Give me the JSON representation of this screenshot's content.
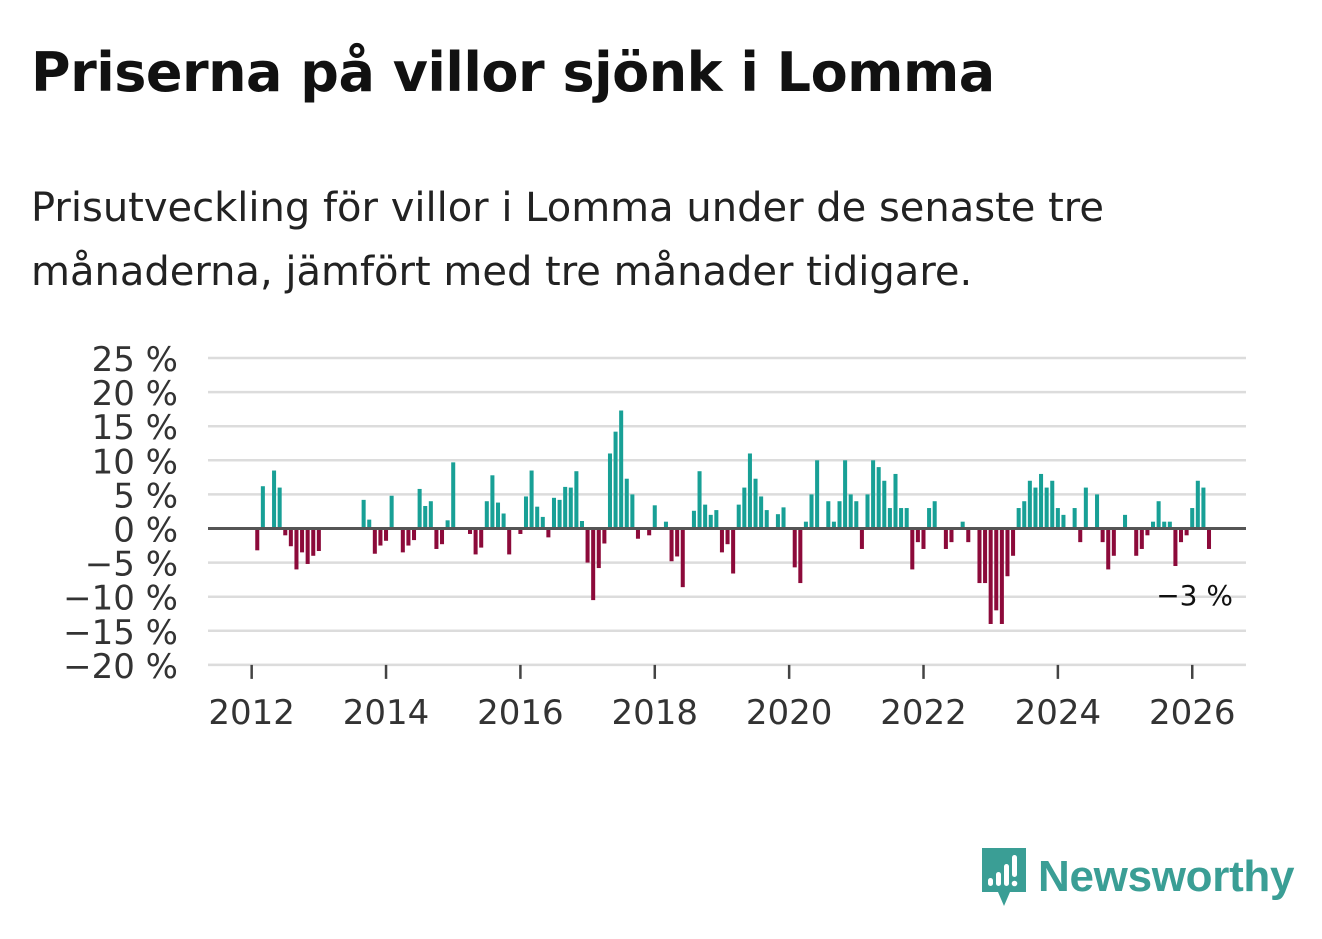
{
  "title": "Priserna på villor sjönk i Lomma",
  "subtitle": "Prisutveckling för villor i Lomma under de senaste tre månaderna, jämfört med tre månader tidigare.",
  "brand": "Newsworthy",
  "colors": {
    "positive": "#18a096",
    "negative": "#8c0a3a",
    "grid": "#dcdcdc",
    "zero_line": "#555555",
    "brand": "#3a9e95"
  },
  "chart_data": {
    "type": "bar",
    "x_start": 2012.0,
    "x_step": 0.08333,
    "x_range": [
      2011.35,
      2026.8
    ],
    "ylim": [
      -20,
      25
    ],
    "grid": true,
    "y_ticks": [
      25,
      20,
      15,
      10,
      5,
      0,
      -5,
      -10,
      -15,
      -20
    ],
    "y_tick_labels": [
      "25 %",
      "20 %",
      "15 %",
      "10 %",
      "5 %",
      "0 %",
      "−5 %",
      "−10 %",
      "−15 %",
      "−20 %"
    ],
    "x_ticks": [
      2012,
      2014,
      2016,
      2018,
      2020,
      2022,
      2024,
      2026
    ],
    "x_tick_labels": [
      "2012",
      "2014",
      "2016",
      "2018",
      "2020",
      "2022",
      "2024",
      "2026"
    ],
    "last_label": "−3 %",
    "values": [
      0,
      -3.2,
      6.2,
      0,
      8.5,
      6,
      -1,
      -2.6,
      -6,
      -3.5,
      -5.2,
      -4,
      -3.3,
      0,
      0,
      0,
      0,
      0,
      0,
      0,
      4.2,
      1.3,
      -3.7,
      -2.5,
      -1.8,
      4.8,
      0,
      -3.5,
      -2.5,
      -1.7,
      5.8,
      3.3,
      4,
      -3,
      -2.3,
      1.2,
      9.7,
      0,
      0,
      -0.8,
      -3.8,
      -2.8,
      4,
      7.8,
      3.8,
      2.2,
      -3.8,
      0,
      -0.8,
      4.7,
      8.5,
      3.2,
      1.7,
      -1.3,
      4.5,
      4.2,
      6.1,
      6,
      8.4,
      1.1,
      -5,
      -10.5,
      -5.8,
      -2.2,
      11,
      14.2,
      17.3,
      7.3,
      5,
      -1.5,
      0,
      -1,
      3.4,
      0,
      1,
      -4.8,
      -4.1,
      -8.6,
      0,
      2.6,
      8.4,
      3.5,
      2,
      2.7,
      -3.5,
      -2.3,
      -6.6,
      3.5,
      6,
      11,
      7.3,
      4.7,
      2.7,
      0,
      2.1,
      3.1,
      0,
      -5.7,
      -8,
      1,
      5,
      10,
      0,
      4,
      1,
      4,
      10,
      5,
      4,
      -3,
      5,
      10,
      9,
      7,
      3,
      8,
      3,
      3,
      -6,
      -2,
      -3,
      3,
      4,
      0,
      -3,
      -2,
      0,
      1,
      -2,
      0,
      -8,
      -8,
      -14,
      -12,
      -14,
      -7,
      -4,
      3,
      4,
      7,
      6,
      8,
      6,
      7,
      3,
      2,
      0,
      3,
      -2,
      6,
      0,
      5,
      -2,
      -6,
      -4,
      0,
      2,
      0,
      -4,
      -3,
      -1,
      1,
      4,
      1,
      1,
      -5.5,
      -2,
      -1,
      3,
      7,
      6,
      -3
    ]
  }
}
